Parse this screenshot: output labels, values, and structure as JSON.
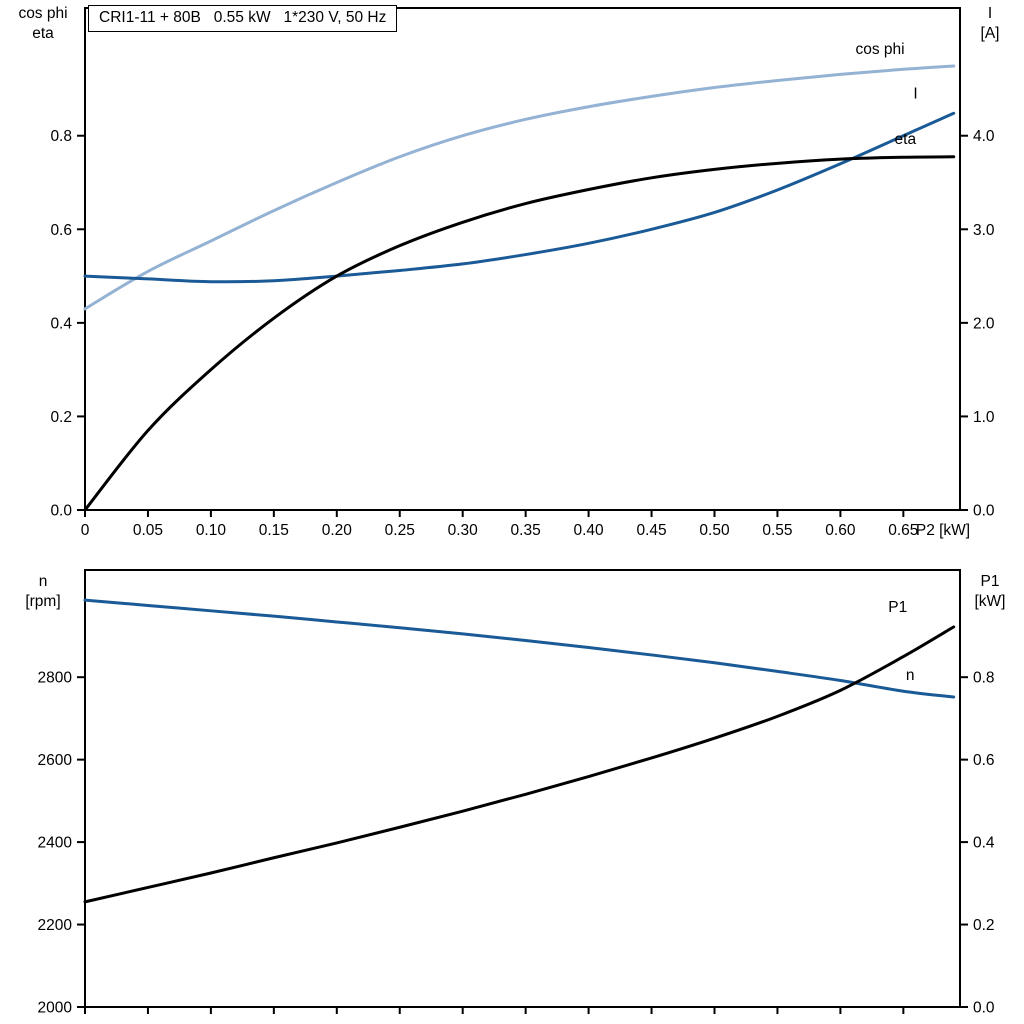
{
  "title_box": "CRI1-11 + 80B   0.55 kW   1*230 V, 50 Hz",
  "colors": {
    "light_blue": "#94b2d3",
    "dark_blue": "#1a5a96",
    "black": "#000000"
  },
  "axis_titles": {
    "top_left_line1": "cos phi",
    "top_left_line2": "eta",
    "top_right_line1": "I",
    "top_right_line2": "[A]",
    "bottom_left_line1": "n",
    "bottom_left_line2": "[rpm]",
    "bottom_right_line1": "P1",
    "bottom_right_line2": "[kW]"
  },
  "chart_data": [
    {
      "type": "line",
      "panel": "top",
      "xlim": [
        0,
        0.695
      ],
      "x": [
        0,
        0.05,
        0.1,
        0.15,
        0.2,
        0.25,
        0.3,
        0.35,
        0.4,
        0.45,
        0.5,
        0.55,
        0.6,
        0.65,
        0.69
      ],
      "x_ticks": [
        0,
        0.05,
        0.1,
        0.15,
        0.2,
        0.25,
        0.3,
        0.35,
        0.4,
        0.45,
        0.5,
        0.55,
        0.6,
        0.65
      ],
      "x_tick_labels": [
        "0",
        "0.05",
        "0.10",
        "0.15",
        "0.20",
        "0.25",
        "0.30",
        "0.35",
        "0.40",
        "0.45",
        "0.50",
        "0.55",
        "0.60",
        "0.65"
      ],
      "xlabel": "P2 [kW]",
      "left_axis": {
        "lim": [
          0,
          1.073
        ],
        "ticks": [
          0,
          0.2,
          0.4,
          0.6,
          0.8
        ],
        "tick_labels": [
          "0.0",
          "0.2",
          "0.4",
          "0.6",
          "0.8"
        ]
      },
      "right_axis": {
        "lim": [
          0,
          5.365
        ],
        "ticks": [
          0,
          1,
          2,
          3,
          4
        ],
        "tick_labels": [
          "0.0",
          "1.0",
          "2.0",
          "3.0",
          "4.0"
        ]
      },
      "series": [
        {
          "name": "cos phi",
          "axis": "left",
          "color": "light_blue",
          "y": [
            0.43,
            0.51,
            0.575,
            0.64,
            0.7,
            0.755,
            0.8,
            0.835,
            0.862,
            0.884,
            0.903,
            0.918,
            0.931,
            0.942,
            0.949
          ],
          "label": "cos phi",
          "label_x": 0.612,
          "label_y": 0.975
        },
        {
          "name": "I",
          "axis": "right",
          "color": "dark_blue",
          "y": [
            2.5,
            2.47,
            2.44,
            2.45,
            2.5,
            2.56,
            2.63,
            2.73,
            2.85,
            3.0,
            3.18,
            3.42,
            3.7,
            4.0,
            4.24
          ],
          "label": "I",
          "label_x": 0.658,
          "label_y": 4.4
        },
        {
          "name": "eta",
          "axis": "left",
          "color": "black",
          "y": [
            0.0,
            0.17,
            0.3,
            0.41,
            0.5,
            0.565,
            0.615,
            0.655,
            0.685,
            0.71,
            0.728,
            0.741,
            0.75,
            0.754,
            0.755
          ],
          "label": "eta",
          "label_x": 0.643,
          "label_y": 0.782
        }
      ]
    },
    {
      "type": "line",
      "panel": "bottom",
      "xlim": [
        0,
        0.695
      ],
      "x": [
        0,
        0.05,
        0.1,
        0.15,
        0.2,
        0.25,
        0.3,
        0.35,
        0.4,
        0.45,
        0.5,
        0.55,
        0.6,
        0.65,
        0.69
      ],
      "x_ticks": [
        0,
        0.05,
        0.1,
        0.15,
        0.2,
        0.25,
        0.3,
        0.35,
        0.4,
        0.45,
        0.5,
        0.55,
        0.6,
        0.65
      ],
      "x_tick_labels": null,
      "xlabel": "",
      "left_axis": {
        "lim": [
          2000,
          3060
        ],
        "ticks": [
          2000,
          2200,
          2400,
          2600,
          2800
        ],
        "tick_labels": [
          "2000",
          "2200",
          "2400",
          "2600",
          "2800"
        ]
      },
      "right_axis": {
        "lim": [
          0,
          1.06
        ],
        "ticks": [
          0,
          0.2,
          0.4,
          0.6,
          0.8
        ],
        "tick_labels": [
          "0.0",
          "0.2",
          "0.4",
          "0.6",
          "0.8"
        ]
      },
      "series": [
        {
          "name": "n",
          "axis": "left",
          "color": "dark_blue",
          "y": [
            2987,
            2974,
            2961,
            2948,
            2934,
            2920,
            2905,
            2889,
            2872,
            2854,
            2835,
            2814,
            2792,
            2766,
            2752
          ],
          "label": "n",
          "label_x": 0.652,
          "label_y": 2793
        },
        {
          "name": "P1",
          "axis": "right",
          "color": "black",
          "y": [
            0.255,
            0.29,
            0.325,
            0.362,
            0.398,
            0.436,
            0.475,
            0.516,
            0.559,
            0.604,
            0.652,
            0.705,
            0.768,
            0.85,
            0.922
          ],
          "label": "P1",
          "label_x": 0.638,
          "label_y": 0.958
        }
      ]
    }
  ]
}
